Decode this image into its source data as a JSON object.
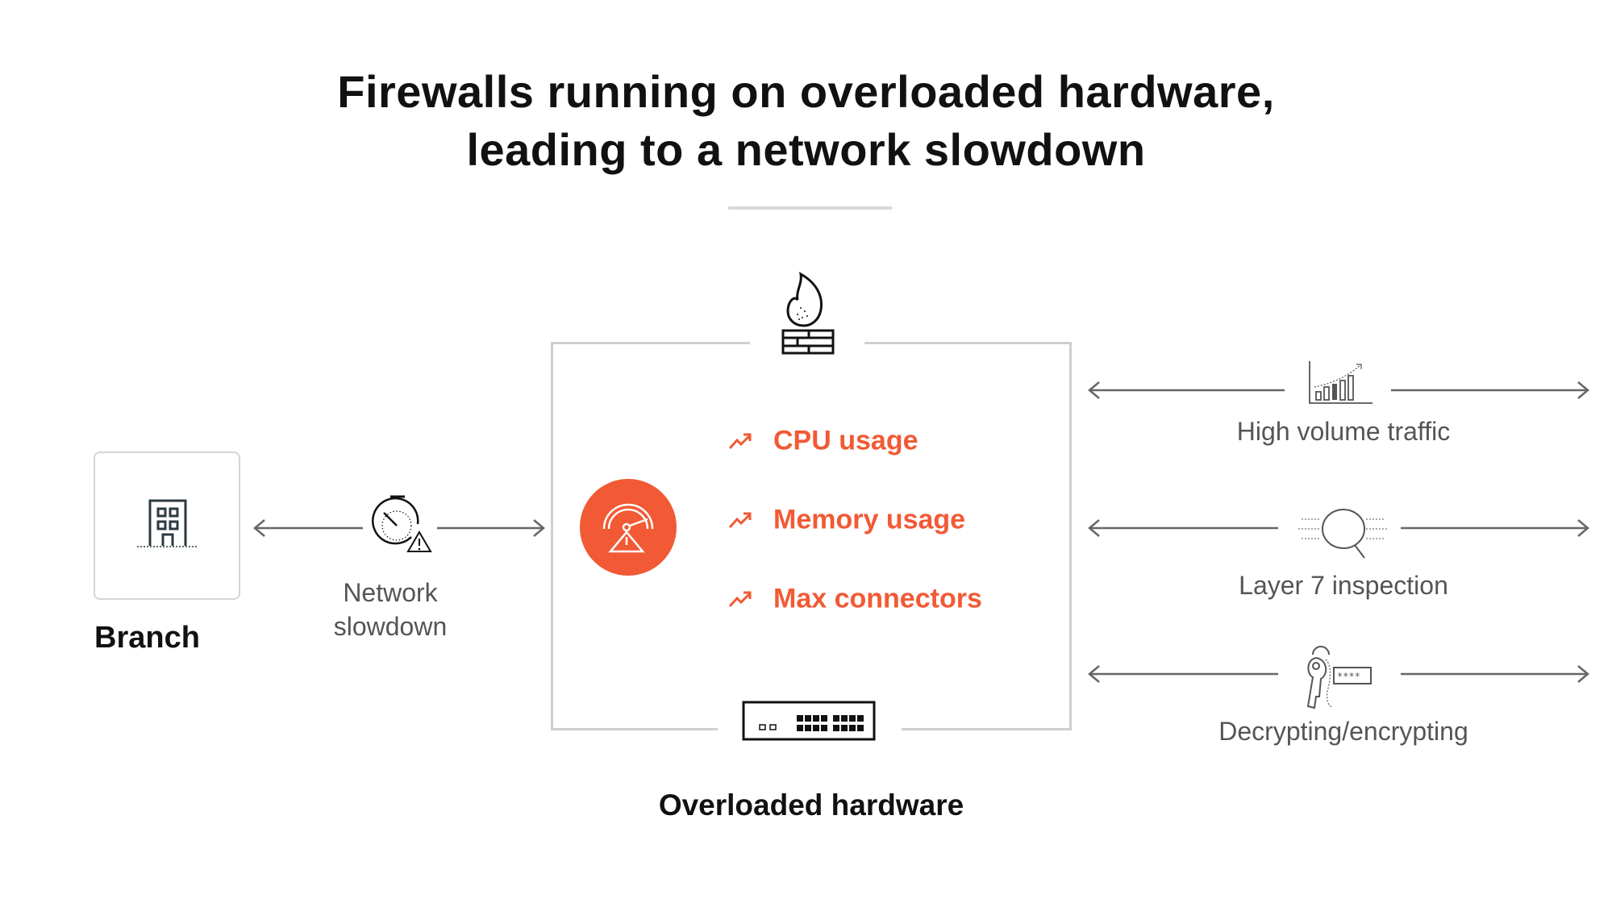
{
  "title": {
    "line1": "Firewalls running on overloaded hardware,",
    "line2": "leading to a network slowdown"
  },
  "branch": {
    "label": "Branch",
    "icon": "building-icon"
  },
  "network": {
    "line1": "Network",
    "line2": "slowdown",
    "icon": "stopwatch-warning-icon"
  },
  "hardware": {
    "label": "Overloaded hardware",
    "top_icon": "firewall-flame-icon",
    "bottom_icon": "network-switch-icon",
    "center_icon": "gauge-warning-icon",
    "metrics": [
      {
        "label": "CPU usage",
        "icon": "trending-up-icon"
      },
      {
        "label": "Memory usage",
        "icon": "trending-up-icon"
      },
      {
        "label": "Max connectors",
        "icon": "trending-up-icon"
      }
    ]
  },
  "loads": [
    {
      "label": "High volume traffic",
      "icon": "bar-chart-growth-icon"
    },
    {
      "label": "Layer 7 inspection",
      "icon": "magnifier-icon"
    },
    {
      "label": "Decrypting/encrypting",
      "icon": "key-password-icon"
    }
  ],
  "colors": {
    "accent": "#f15a35",
    "text": "#111111",
    "muted": "#555555",
    "border": "#cfcfcf"
  }
}
